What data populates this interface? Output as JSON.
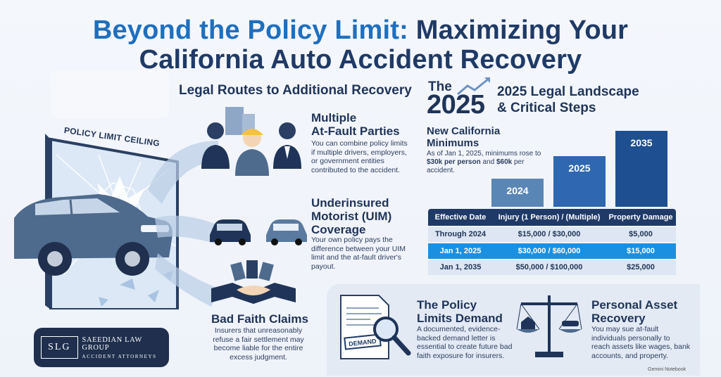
{
  "title": {
    "line1_accent": "Beyond the Policy Limit:",
    "line1_rest": " Maximizing Your",
    "line2": "California Auto Accident Recovery"
  },
  "left": {
    "heading": "Legal Routes to Additional Recovery",
    "wall_label": "POLICY LIMIT CEILING",
    "sections": [
      {
        "title": [
          "Multiple",
          "At-Fault Parties"
        ],
        "text": [
          "You can combine policy limits",
          "if multiple drivers, employers,",
          "or government entities",
          "contributed to the accident."
        ]
      },
      {
        "title": [
          "Underinsured",
          "Motorist (UIM)",
          "Coverage"
        ],
        "text": [
          "Your own policy pays the",
          "difference between your UIM",
          "limit and the at-fault driver's",
          "payout."
        ]
      },
      {
        "title": [
          "Bad Faith Claims"
        ],
        "text": [
          "Insurers that unreasonably",
          "refuse a fair settlement may",
          "become liable for the entire",
          "excess judgment."
        ]
      }
    ],
    "logo": {
      "mark": "SLG",
      "name": "SAEEDIAN LAW GROUP",
      "sub": "ACCIDENT ATTORNEYS"
    }
  },
  "right": {
    "badge_the": "The",
    "badge_year": "2025",
    "landscape_title": [
      "2025 Legal Landscape",
      "& Critical Steps"
    ],
    "minimums": {
      "title": [
        "New California",
        "Minimums"
      ],
      "text_pre": "As of Jan 1, 2025, minimums rose to ",
      "bold1": "$30k per person",
      "text_mid": " and ",
      "bold2": "$60k",
      "text_post": " per accident."
    },
    "bars": [
      {
        "label": "2024",
        "level": 1
      },
      {
        "label": "2025",
        "level": 2
      },
      {
        "label": "2035",
        "level": 3
      }
    ],
    "table": {
      "headers": [
        "Effective Date",
        "Injury (1 Person) / (Multiple)",
        "Property Damage"
      ],
      "rows": [
        [
          "Through 2024",
          "$15,000 / $30,000",
          "$5,000"
        ],
        [
          "Jan 1, 2025",
          "$30,000 / $60,000",
          "$15,000"
        ],
        [
          "Jan 1, 2035",
          "$50,000 / $100,000",
          "$25,000"
        ]
      ]
    },
    "demand": {
      "title": [
        "The Policy",
        "Limits Demand"
      ],
      "text": [
        "A documented, evidence-",
        "backed demand letter is",
        "essential to create future bad",
        "faith exposure for insurers."
      ],
      "stamp": "DEMAND"
    },
    "asset": {
      "title": [
        "Personal Asset",
        "Recovery"
      ],
      "text": [
        "You may sue at-fault",
        "individuals personally to",
        "reach assets like wages, bank",
        "accounts, and property."
      ]
    }
  },
  "watermark": "Gemini Notebook",
  "colors": {
    "navy": "#1f3458",
    "accent_blue": "#1f6fbf",
    "highlight": "#1b90e0"
  }
}
